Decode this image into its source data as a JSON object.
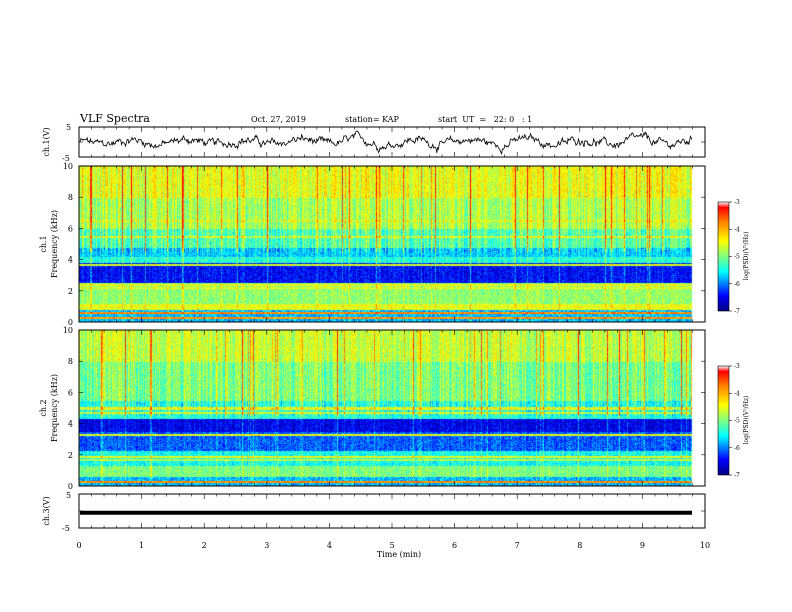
{
  "header": {
    "title": "VLF Spectra",
    "date": "Oct. 27, 2019",
    "station": "station= KAP",
    "start": "start  UT  =   22: 0   : 1"
  },
  "colorbar_label": "log(PSD)(V²/Hz)",
  "chart_data": [
    {
      "type": "line",
      "panel": "ch1-waveform",
      "ylabel": "ch.1(V)",
      "ylim": [
        -5,
        5
      ],
      "yticks": [
        "5",
        "-5"
      ],
      "xlim": [
        0,
        10
      ],
      "series_color": "#000000"
    },
    {
      "type": "heatmap",
      "panel": "ch1-spectrogram",
      "ylabel_top": "ch.1",
      "ylabel": "Frequency (kHz)",
      "ylim": [
        0,
        10
      ],
      "yticks": [
        "0",
        "2",
        "4",
        "6",
        "8",
        "10"
      ],
      "xlim": [
        0,
        10
      ],
      "colorbar": {
        "ticks": [
          "-3",
          "-4",
          "-5",
          "-6",
          "-7"
        ],
        "range": [
          -7,
          -3
        ]
      },
      "colormap": [
        "#00007f",
        "#0000ff",
        "#00ffff",
        "#7fff7f",
        "#ffff00",
        "#ff7f00",
        "#ff0000"
      ]
    },
    {
      "type": "heatmap",
      "panel": "ch2-spectrogram",
      "ylabel_top": "ch.2",
      "ylabel": "Frequency (kHz)",
      "ylim": [
        0,
        10
      ],
      "yticks": [
        "0",
        "2",
        "4",
        "6",
        "8",
        "10"
      ],
      "xlim": [
        0,
        10
      ],
      "colorbar": {
        "ticks": [
          "-3",
          "-4",
          "-5",
          "-6",
          "-7"
        ],
        "range": [
          -7,
          -3
        ]
      },
      "colormap": [
        "#00007f",
        "#0000ff",
        "#00ffff",
        "#7fff7f",
        "#ffff00",
        "#ff7f00",
        "#ff0000"
      ]
    },
    {
      "type": "line",
      "panel": "ch3-waveform",
      "ylabel": "ch.3(V)",
      "ylim": [
        -5,
        5
      ],
      "yticks": [
        "5",
        "-5"
      ],
      "xlim": [
        0,
        10
      ],
      "value": -0.5,
      "series_color": "#000000"
    }
  ],
  "xaxis": {
    "label": "Time (min)",
    "ticks": [
      "0",
      "1",
      "2",
      "3",
      "4",
      "5",
      "6",
      "7",
      "8",
      "9",
      "10"
    ]
  }
}
